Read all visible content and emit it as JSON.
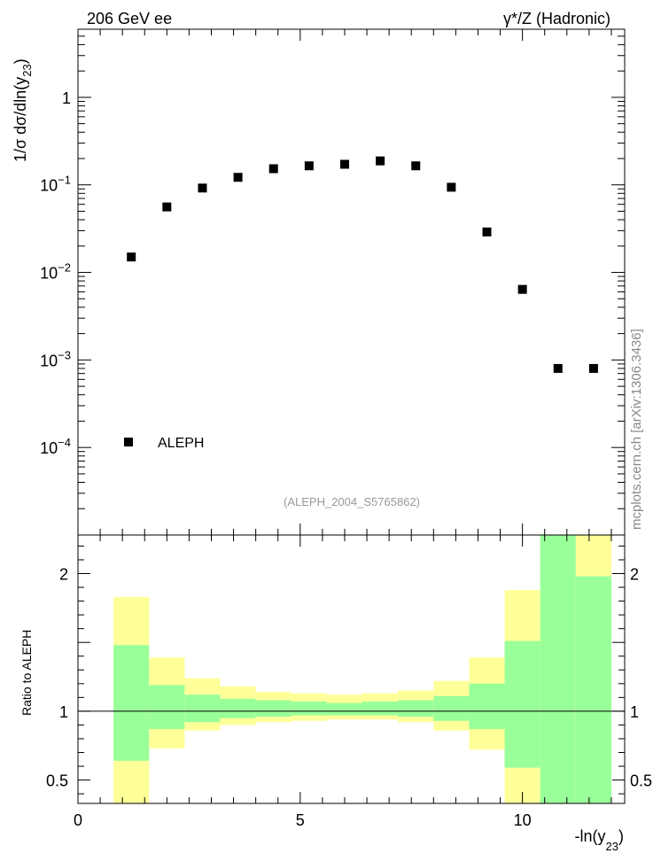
{
  "header": {
    "left_label": "206 GeV ee",
    "right_label": "γ*/Z (Hadronic)"
  },
  "watermark": "mcplots.cern.ch [arXiv:1306.3436]",
  "analysis_id": "(ALEPH_2004_S5765862)",
  "colors": {
    "green_band": "#99ff99",
    "yellow_band": "#ffff99",
    "marker": "#000000",
    "analysis_text": "#999999",
    "watermark_text": "#888888"
  },
  "chart_data": [
    {
      "type": "scatter",
      "ylabel": {
        "main": "1/σ  dσ/dln(y",
        "sub": "23",
        "end": ")"
      },
      "yscale": "log",
      "xlim": [
        0,
        12.3
      ],
      "ylim": [
        1e-05,
        6
      ],
      "y_ticks": [
        {
          "v": 0.0001,
          "base": "10",
          "exp": "−4"
        },
        {
          "v": 0.001,
          "base": "10",
          "exp": "−3"
        },
        {
          "v": 0.01,
          "base": "10",
          "exp": "−2"
        },
        {
          "v": 0.1,
          "base": "10",
          "exp": "−1"
        },
        {
          "v": 1,
          "base": "1",
          "exp": ""
        }
      ],
      "series": [
        {
          "name": "ALEPH",
          "x": [
            1.2,
            2.0,
            2.8,
            3.6,
            4.4,
            5.2,
            6.0,
            6.8,
            7.6,
            8.4,
            9.2,
            10.0,
            10.8,
            11.6
          ],
          "y": [
            0.015,
            0.056,
            0.092,
            0.122,
            0.153,
            0.165,
            0.172,
            0.188,
            0.165,
            0.094,
            0.029,
            0.0064,
            0.0008,
            0.0008
          ]
        }
      ],
      "legend": "bottom-left"
    },
    {
      "type": "area",
      "ylabel": "Ratio to ALEPH",
      "xlabel": {
        "main": "-ln(y",
        "sub": "23",
        "end": ")"
      },
      "xlim": [
        0,
        12.3
      ],
      "ylim": [
        0.33,
        2.28
      ],
      "x_ticks": [
        0,
        5,
        10
      ],
      "y_ticks": [
        0.5,
        1,
        2
      ],
      "reference_line": 1,
      "bins": [
        {
          "lo": 0.8,
          "hi": 1.6,
          "g_lo": 0.64,
          "g_hi": 1.48,
          "y_lo": 0.3,
          "y_hi": 1.83
        },
        {
          "lo": 1.6,
          "hi": 2.4,
          "g_lo": 0.87,
          "g_hi": 1.19,
          "y_lo": 0.73,
          "y_hi": 1.39
        },
        {
          "lo": 2.4,
          "hi": 3.2,
          "g_lo": 0.92,
          "g_hi": 1.12,
          "y_lo": 0.86,
          "y_hi": 1.24
        },
        {
          "lo": 3.2,
          "hi": 4.0,
          "g_lo": 0.95,
          "g_hi": 1.09,
          "y_lo": 0.9,
          "y_hi": 1.18
        },
        {
          "lo": 4.0,
          "hi": 4.8,
          "g_lo": 0.96,
          "g_hi": 1.08,
          "y_lo": 0.92,
          "y_hi": 1.14
        },
        {
          "lo": 4.8,
          "hi": 5.6,
          "g_lo": 0.97,
          "g_hi": 1.07,
          "y_lo": 0.93,
          "y_hi": 1.13
        },
        {
          "lo": 5.6,
          "hi": 6.4,
          "g_lo": 0.97,
          "g_hi": 1.06,
          "y_lo": 0.94,
          "y_hi": 1.12
        },
        {
          "lo": 6.4,
          "hi": 7.2,
          "g_lo": 0.97,
          "g_hi": 1.07,
          "y_lo": 0.94,
          "y_hi": 1.13
        },
        {
          "lo": 7.2,
          "hi": 8.0,
          "g_lo": 0.96,
          "g_hi": 1.08,
          "y_lo": 0.92,
          "y_hi": 1.15
        },
        {
          "lo": 8.0,
          "hi": 8.8,
          "g_lo": 0.93,
          "g_hi": 1.11,
          "y_lo": 0.86,
          "y_hi": 1.22
        },
        {
          "lo": 8.8,
          "hi": 9.6,
          "g_lo": 0.87,
          "g_hi": 1.2,
          "y_lo": 0.72,
          "y_hi": 1.39
        },
        {
          "lo": 9.6,
          "hi": 10.4,
          "g_lo": 0.59,
          "g_hi": 1.51,
          "y_lo": 0.3,
          "y_hi": 1.88
        },
        {
          "lo": 10.4,
          "hi": 11.2,
          "g_lo": 0.3,
          "g_hi": 2.4,
          "y_lo": 0.3,
          "y_hi": 2.4
        },
        {
          "lo": 11.2,
          "hi": 12.0,
          "g_lo": 0.3,
          "g_hi": 1.98,
          "y_lo": 0.3,
          "y_hi": 2.4
        }
      ]
    }
  ]
}
